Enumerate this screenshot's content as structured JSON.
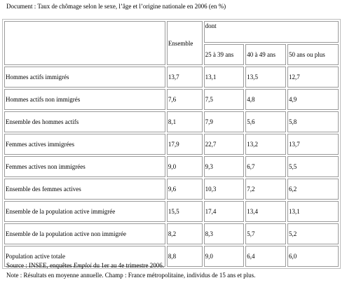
{
  "caption": "Document : Taux de chômage selon le sexe, l’âge et l’origine nationale en 2006 (en %)",
  "table": {
    "header_ensemble": "Ensemble",
    "header_dont": "dont",
    "age_headers": [
      "25 à 39 ans",
      "40 à 49 ans",
      "50 ans ou plus"
    ],
    "rows": [
      {
        "label": "Hommes actifs immigrés",
        "values": [
          "13,7",
          "13,1",
          "13,5",
          "12,7"
        ]
      },
      {
        "label": "Hommes actifs non immigrés",
        "values": [
          "7,6",
          "7,5",
          "4,8",
          "4,9"
        ]
      },
      {
        "label": "Ensemble des hommes actifs",
        "values": [
          "8,1",
          "7,9",
          "5,6",
          "5,8"
        ]
      },
      {
        "label": "Femmes actives immigrées",
        "values": [
          "17,9",
          "22,7",
          "13,2",
          "13,7"
        ]
      },
      {
        "label": "Femmes actives non immigrées",
        "values": [
          "9,0",
          "9,3",
          "6,7",
          "5,5"
        ]
      },
      {
        "label": "Ensemble des femmes actives",
        "values": [
          "9,6",
          "10,3",
          "7,2",
          "6,2"
        ]
      },
      {
        "label": "Ensemble de la population active immigrée",
        "values": [
          "15,5",
          "17,4",
          "13,4",
          "13,1"
        ]
      },
      {
        "label": "Ensemble de la population active non immigrée",
        "values": [
          "8,2",
          "8,3",
          "5,7",
          "5,2"
        ]
      },
      {
        "label": "Population active totale",
        "values": [
          "8,8",
          "9,0",
          "6,4",
          "6,0"
        ]
      }
    ]
  },
  "footer": {
    "source_prefix": "Source : INSEE, enquêtes ",
    "source_emph": "Emploi",
    "source_suffix": " du 1er au 4e trimestre 2006.",
    "note": "Note : Résultats en moyenne annuelle. Champ : France métropolitaine, individus de 15 ans et plus."
  }
}
